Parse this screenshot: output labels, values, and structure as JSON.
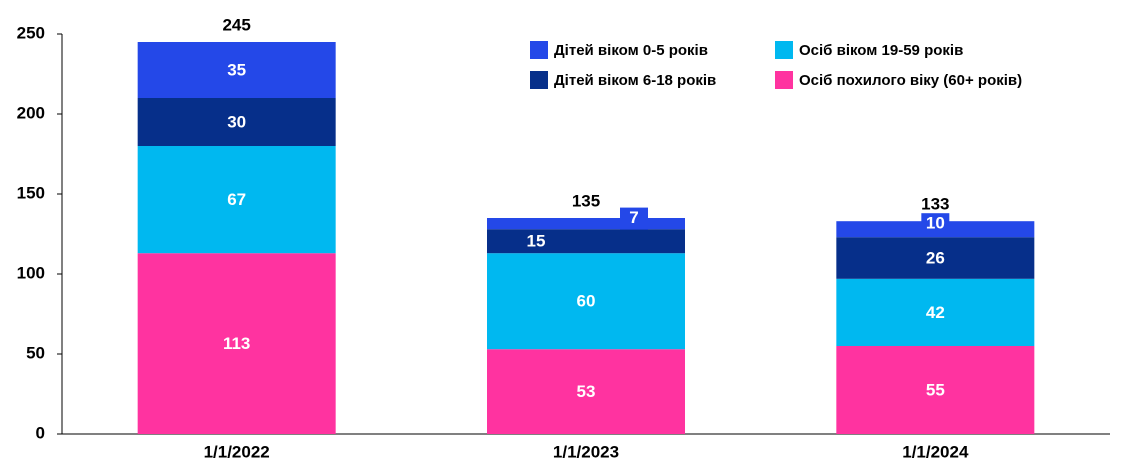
{
  "chart_data": {
    "type": "stacked_bar",
    "categories": [
      "1/1/2022",
      "1/1/2023",
      "1/1/2024"
    ],
    "series": [
      {
        "name": "Дітей віком 0-5 років",
        "color": "#2448e8",
        "values": [
          35,
          7,
          10
        ]
      },
      {
        "name": "Дітей віком 6-18 років",
        "color": "#062f8a",
        "values": [
          30,
          15,
          26
        ]
      },
      {
        "name": "Осіб віком 19-59 років",
        "color": "#00b8f0",
        "values": [
          67,
          60,
          42
        ]
      },
      {
        "name": "Осіб похилого віку (60+ років)",
        "color": "#ff33a0",
        "values": [
          113,
          53,
          55
        ]
      }
    ],
    "totals": [
      245,
      135,
      133
    ],
    "ylim": [
      0,
      250
    ],
    "yticks": [
      0,
      50,
      100,
      150,
      200,
      250
    ],
    "grid": false
  }
}
